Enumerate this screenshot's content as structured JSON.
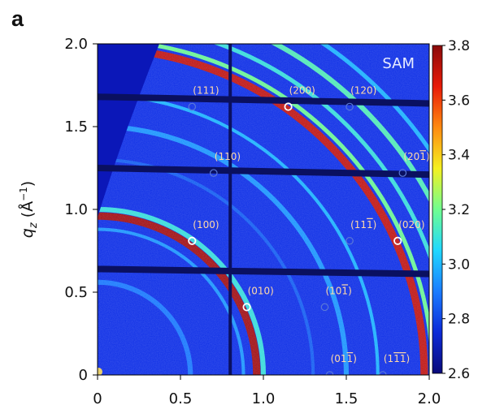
{
  "panel_label": "a",
  "chart_data": {
    "type": "heatmap",
    "title": "",
    "sample_label": "SAM",
    "xlabel": "",
    "ylabel": "q_z (Å⁻¹)",
    "ylabel_parts": {
      "q": "q",
      "sub": "z",
      "unit": "(Å",
      "exp": "−1",
      "close": ")"
    },
    "xlim": [
      0,
      2.0
    ],
    "ylim": [
      0,
      2.0
    ],
    "x_ticks": [
      0,
      0.5,
      1.0,
      1.5,
      2.0
    ],
    "x_tick_labels": [
      "0",
      "0.5",
      "1.0",
      "1.5",
      "2.0"
    ],
    "y_ticks": [
      0,
      0.5,
      1.0,
      1.5,
      2.0
    ],
    "y_tick_labels": [
      "0",
      "0.5",
      "1.0",
      "1.5",
      "2.0"
    ],
    "colorbar": {
      "min": 2.6,
      "max": 3.8,
      "ticks": [
        2.6,
        2.8,
        3.0,
        3.2,
        3.4,
        3.6,
        3.8
      ],
      "tick_labels": [
        "2.6",
        "2.8",
        "3.0",
        "3.2",
        "3.4",
        "3.6",
        "3.8"
      ],
      "colors": [
        "#0a0a7a",
        "#0c2ad8",
        "#1a7cff",
        "#20d8ff",
        "#70ff90",
        "#f4f020",
        "#ff8a10",
        "#e81a08",
        "#8a0a0a"
      ]
    },
    "rings": [
      {
        "q": 0.96,
        "width": 0.045,
        "intensity": 3.75
      },
      {
        "q": 1.0,
        "width": 0.03,
        "intensity": 3.1
      },
      {
        "q": 0.56,
        "width": 0.03,
        "intensity": 2.9
      },
      {
        "q": 0.88,
        "width": 0.02,
        "intensity": 2.95
      },
      {
        "q": 1.3,
        "width": 0.02,
        "intensity": 2.85
      },
      {
        "q": 1.5,
        "width": 0.03,
        "intensity": 2.95
      },
      {
        "q": 1.69,
        "width": 0.02,
        "intensity": 3.0
      },
      {
        "q": 1.97,
        "width": 0.045,
        "intensity": 3.7
      },
      {
        "q": 2.02,
        "width": 0.025,
        "intensity": 3.2
      },
      {
        "q": 2.13,
        "width": 0.025,
        "intensity": 3.1
      },
      {
        "q": 2.27,
        "width": 0.03,
        "intensity": 3.15
      },
      {
        "q": 2.42,
        "width": 0.025,
        "intensity": 3.0
      }
    ],
    "peaks": [
      {
        "label": "(111)",
        "label_rich": [
          [
            "(111)"
          ]
        ],
        "x": 0.57,
        "y": 1.62,
        "highlight": false
      },
      {
        "label": "(200)",
        "label_rich": [
          [
            "(200)"
          ]
        ],
        "x": 1.15,
        "y": 1.62,
        "highlight": true
      },
      {
        "label": "(120)",
        "label_rich": [
          [
            "(120)"
          ]
        ],
        "x": 1.52,
        "y": 1.62,
        "highlight": false
      },
      {
        "label": "(110)",
        "label_rich": [
          [
            "(110)"
          ]
        ],
        "x": 0.7,
        "y": 1.22,
        "highlight": false
      },
      {
        "label": "(201̄)",
        "label_rich": [
          [
            "(20"
          ],
          [
            "1",
            "bar"
          ],
          [
            ")"
          ]
        ],
        "x": 1.84,
        "y": 1.22,
        "highlight": false
      },
      {
        "label": "(100)",
        "label_rich": [
          [
            "(100)"
          ]
        ],
        "x": 0.57,
        "y": 0.81,
        "highlight": true
      },
      {
        "label": "(111̄)",
        "label_rich": [
          [
            "(11"
          ],
          [
            "1",
            "bar"
          ],
          [
            ")"
          ]
        ],
        "x": 1.52,
        "y": 0.81,
        "highlight": false
      },
      {
        "label": "(020)",
        "label_rich": [
          [
            "(020)"
          ]
        ],
        "x": 1.81,
        "y": 0.81,
        "highlight": true
      },
      {
        "label": "(010)",
        "label_rich": [
          [
            "(010)"
          ]
        ],
        "x": 0.9,
        "y": 0.41,
        "highlight": true
      },
      {
        "label": "(101̄)",
        "label_rich": [
          [
            "(10"
          ],
          [
            "1",
            "bar"
          ],
          [
            ")"
          ]
        ],
        "x": 1.37,
        "y": 0.41,
        "highlight": false
      },
      {
        "label": "(011̄)",
        "label_rich": [
          [
            "(01"
          ],
          [
            "1",
            "bar"
          ],
          [
            ")"
          ]
        ],
        "x": 1.4,
        "y": 0.0,
        "highlight": false
      },
      {
        "label": "(11̄1̄)",
        "label_rich": [
          [
            "(1"
          ],
          [
            "1",
            "bar"
          ],
          [
            "1",
            "bar"
          ],
          [
            ")"
          ]
        ],
        "x": 1.72,
        "y": 0.0,
        "highlight": false
      }
    ],
    "grid": false,
    "legend": "none"
  }
}
